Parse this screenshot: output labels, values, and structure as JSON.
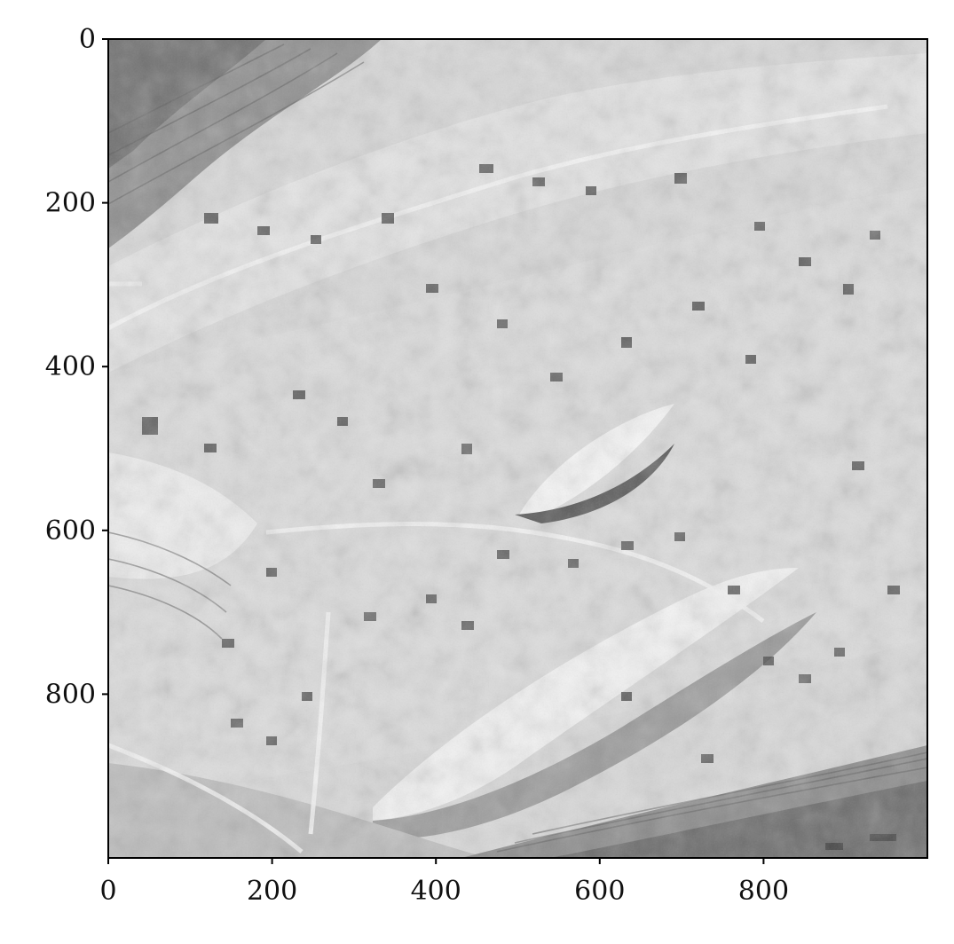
{
  "image": {
    "type": "hillshade-raster",
    "colormap": "gray",
    "extent": {
      "x": [
        0,
        1000
      ],
      "y": [
        0,
        1000
      ]
    },
    "y_axis_direction": "down"
  },
  "axes": {
    "x_ticks": [
      {
        "value": 0,
        "label": "0"
      },
      {
        "value": 200,
        "label": "200"
      },
      {
        "value": 400,
        "label": "400"
      },
      {
        "value": 600,
        "label": "600"
      },
      {
        "value": 800,
        "label": "800"
      }
    ],
    "y_ticks": [
      {
        "value": 0,
        "label": "0"
      },
      {
        "value": 200,
        "label": "200"
      },
      {
        "value": 400,
        "label": "400"
      },
      {
        "value": 600,
        "label": "600"
      },
      {
        "value": 800,
        "label": "800"
      }
    ]
  },
  "colors": {
    "frame": "#000000",
    "terrain_light": "#f2f2f2",
    "terrain_mid": "#c8c8c8",
    "terrain_dark": "#4a4a4a"
  }
}
